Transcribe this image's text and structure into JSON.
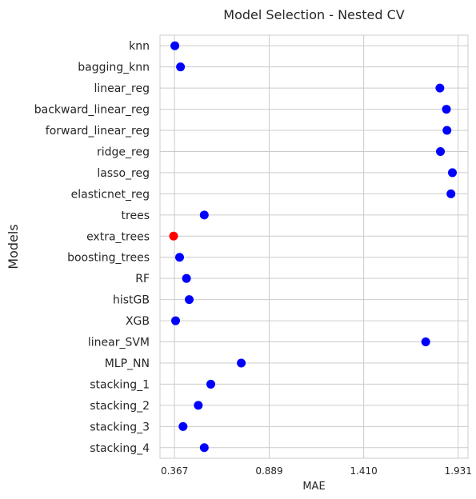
{
  "chart_data": {
    "type": "scatter",
    "title": "Model Selection - Nested CV",
    "xlabel": "MAE",
    "ylabel": "Models",
    "xticks": [
      "0.367",
      "0.889",
      "1.410",
      "1.931"
    ],
    "xlim": [
      0.287,
      1.985
    ],
    "grid": true,
    "colors": {
      "default": "#0000ff",
      "best": "#ff0000",
      "grid": "#cccccc",
      "spine": "#cccccc"
    },
    "points": [
      {
        "model": "knn",
        "mae": 0.369,
        "best": false
      },
      {
        "model": "bagging_knn",
        "mae": 0.4,
        "best": false
      },
      {
        "model": "linear_reg",
        "mae": 1.83,
        "best": false
      },
      {
        "model": "backward_linear_reg",
        "mae": 1.866,
        "best": false
      },
      {
        "model": "forward_linear_reg",
        "mae": 1.869,
        "best": false
      },
      {
        "model": "ridge_reg",
        "mae": 1.833,
        "best": false
      },
      {
        "model": "lasso_reg",
        "mae": 1.899,
        "best": false
      },
      {
        "model": "elasticnet_reg",
        "mae": 1.891,
        "best": false
      },
      {
        "model": "trees",
        "mae": 0.531,
        "best": false
      },
      {
        "model": "extra_trees",
        "mae": 0.362,
        "best": true
      },
      {
        "model": "boosting_trees",
        "mae": 0.395,
        "best": false
      },
      {
        "model": "RF",
        "mae": 0.433,
        "best": false
      },
      {
        "model": "histGB",
        "mae": 0.448,
        "best": false
      },
      {
        "model": "XGB",
        "mae": 0.373,
        "best": false
      },
      {
        "model": "linear_SVM",
        "mae": 1.752,
        "best": false
      },
      {
        "model": "MLP_NN",
        "mae": 0.735,
        "best": false
      },
      {
        "model": "stacking_1",
        "mae": 0.567,
        "best": false
      },
      {
        "model": "stacking_2",
        "mae": 0.498,
        "best": false
      },
      {
        "model": "stacking_3",
        "mae": 0.414,
        "best": false
      },
      {
        "model": "stacking_4",
        "mae": 0.531,
        "best": false
      }
    ]
  }
}
